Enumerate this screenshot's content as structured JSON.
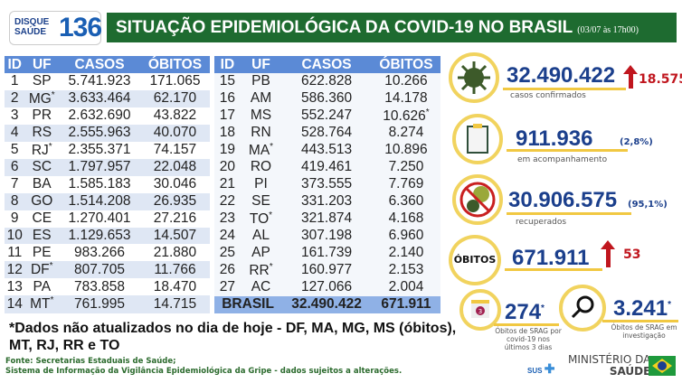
{
  "logo": {
    "line1": "DISQUE",
    "line2": "SAÚDE",
    "number": "136"
  },
  "header": {
    "title": "SITUAÇÃO EPIDEMIOLÓGICA DA COVID-19 NO BRASIL",
    "date": "(03/07 às 17h00)"
  },
  "table": {
    "columns": [
      "ID",
      "UF",
      "CASOS",
      "ÓBITOS"
    ],
    "left": [
      [
        "1",
        "SP",
        "5.741.923",
        "171.065",
        ""
      ],
      [
        "2",
        "MG",
        "3.633.464",
        "62.170",
        "uf"
      ],
      [
        "3",
        "PR",
        "2.632.690",
        "43.822",
        ""
      ],
      [
        "4",
        "RS",
        "2.555.963",
        "40.070",
        ""
      ],
      [
        "5",
        "RJ",
        "2.355.371",
        "74.157",
        "uf"
      ],
      [
        "6",
        "SC",
        "1.797.957",
        "22.048",
        ""
      ],
      [
        "7",
        "BA",
        "1.585.183",
        "30.046",
        ""
      ],
      [
        "8",
        "GO",
        "1.514.208",
        "26.935",
        ""
      ],
      [
        "9",
        "CE",
        "1.270.401",
        "27.216",
        ""
      ],
      [
        "10",
        "ES",
        "1.129.653",
        "14.507",
        ""
      ],
      [
        "11",
        "PE",
        "983.266",
        "21.880",
        ""
      ],
      [
        "12",
        "DF",
        "807.705",
        "11.766",
        "uf"
      ],
      [
        "13",
        "PA",
        "783.858",
        "18.470",
        ""
      ],
      [
        "14",
        "MT",
        "761.995",
        "14.715",
        "uf"
      ]
    ],
    "right": [
      [
        "15",
        "PB",
        "622.828",
        "10.266",
        ""
      ],
      [
        "16",
        "AM",
        "586.360",
        "14.178",
        ""
      ],
      [
        "17",
        "MS",
        "552.247",
        "10.626",
        "ob"
      ],
      [
        "18",
        "RN",
        "528.764",
        "8.274",
        ""
      ],
      [
        "19",
        "MA",
        "443.513",
        "10.896",
        "uf"
      ],
      [
        "20",
        "RO",
        "419.461",
        "7.250",
        ""
      ],
      [
        "21",
        "PI",
        "373.555",
        "7.769",
        ""
      ],
      [
        "22",
        "SE",
        "331.203",
        "6.360",
        ""
      ],
      [
        "23",
        "TO",
        "321.874",
        "4.168",
        "uf"
      ],
      [
        "24",
        "AL",
        "307.198",
        "6.960",
        ""
      ],
      [
        "25",
        "AP",
        "161.739",
        "2.140",
        ""
      ],
      [
        "26",
        "RR",
        "160.977",
        "2.153",
        "uf"
      ],
      [
        "27",
        "AC",
        "127.066",
        "2.004",
        ""
      ]
    ],
    "total": {
      "label": "BRASIL",
      "casos": "32.490.422",
      "obitos": "671.911"
    },
    "asterisk": "*"
  },
  "stats": {
    "confirmados": {
      "value": "32.490.422",
      "delta": "18.575",
      "label": "casos confirmados",
      "icon": "virus-icon"
    },
    "acompanhamento": {
      "value": "911.936",
      "pct": "(2,8%)",
      "label": "em acompanhamento",
      "icon": "clipboard-icon"
    },
    "recuperados": {
      "value": "30.906.575",
      "pct": "(95,1%)",
      "label": "recuperados",
      "icon": "no-virus-icon"
    },
    "obitos": {
      "badge": "ÓBITOS",
      "value": "671.911",
      "delta": "53"
    },
    "srag": {
      "value": "274",
      "label": "Óbitos de SRAG por covid-19 nos últimos 3 dias",
      "calendar": "3"
    },
    "investigacao": {
      "value": "3.241",
      "label": "Óbitos de SRAG em investigação"
    }
  },
  "footer": {
    "note": "*Dados não atualizados no dia de hoje - DF, MA, MG, MS (óbitos), MT, RJ, RR e TO",
    "source1": "Fonte: Secretarias Estaduais de Saúde;",
    "source2": "Sistema de Informação da Vigilância Epidemiológica da Gripe - dados sujeitos a alterações.",
    "sus": "SUS",
    "ministry1": "MINISTÉRIO DA",
    "ministry2": "SAÚDE"
  },
  "colors": {
    "banner": "#1e6b30",
    "header": "#5b8ad6",
    "number": "#1b3f8c",
    "up": "#c0161e",
    "ring": "#f1d35e"
  }
}
